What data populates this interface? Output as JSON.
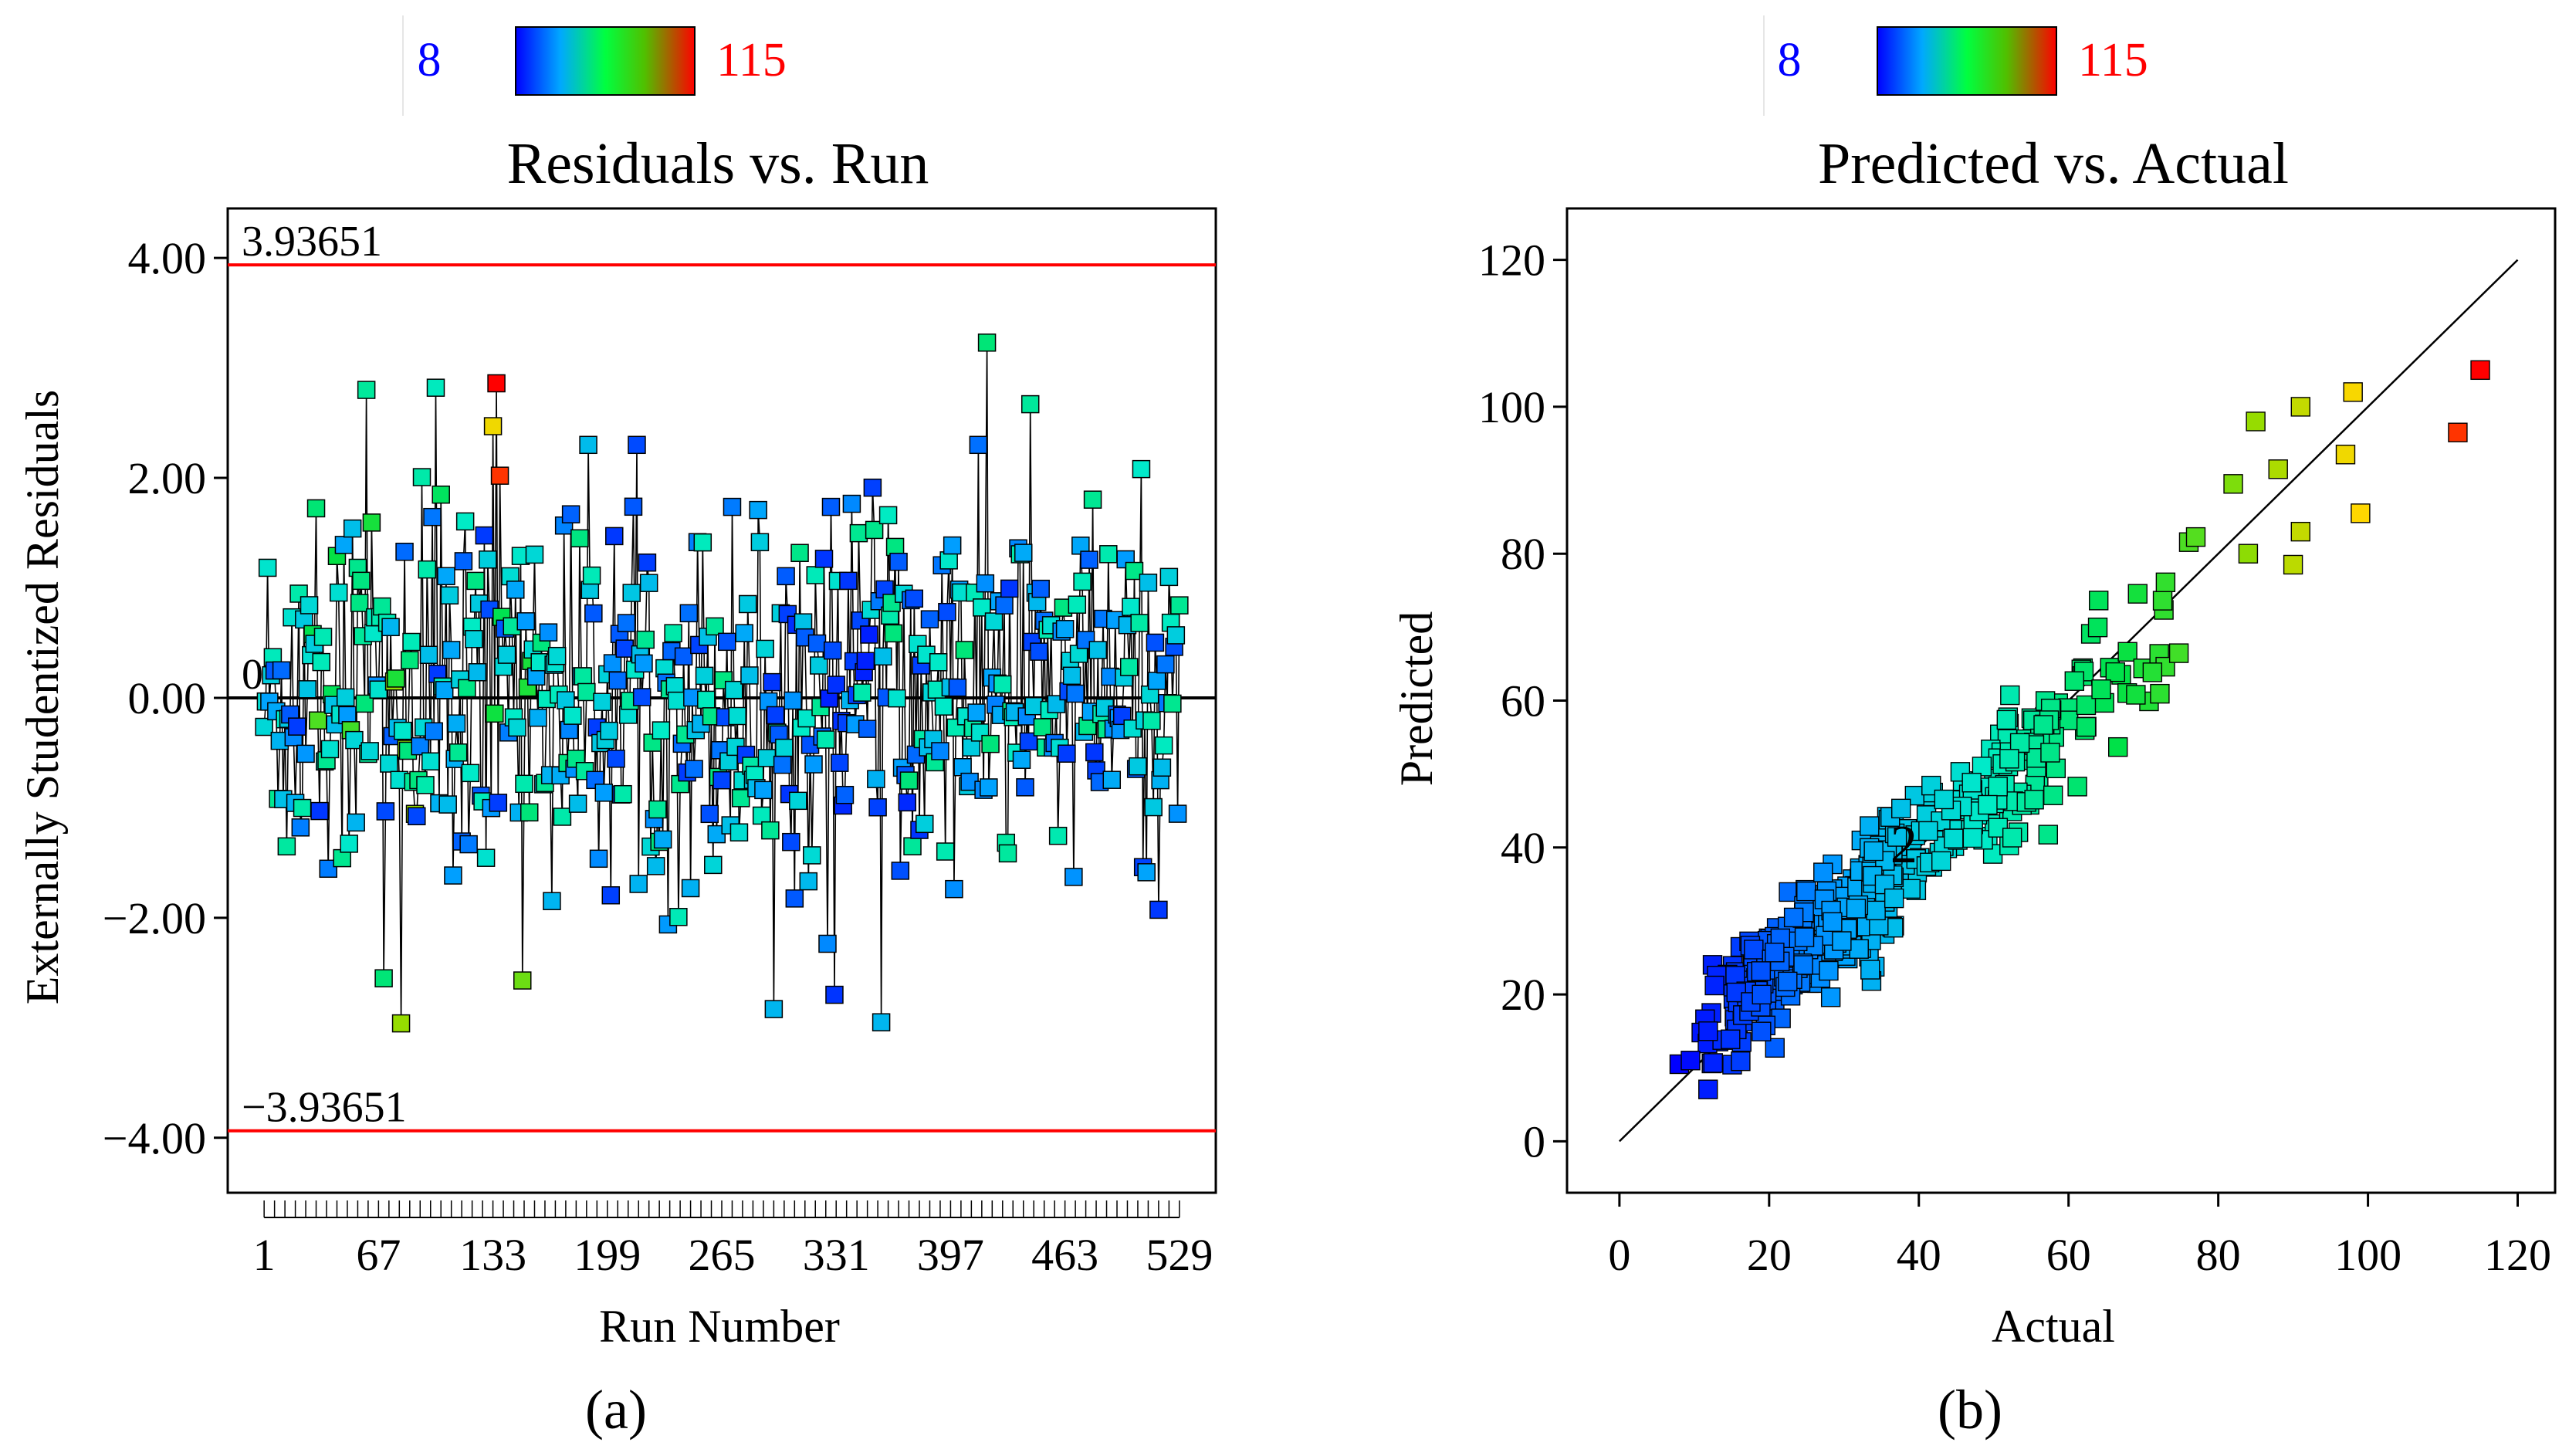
{
  "figure": {
    "panels": [
      {
        "id": "a",
        "panel_label": "(a)",
        "colorbar": {
          "min_label": "8",
          "max_label": "115",
          "min_color": "#0000ff",
          "max_color": "#ff0000"
        },
        "chart_data": {
          "type": "scatter",
          "title": "Residuals vs. Run",
          "xlabel": "Run Number",
          "ylabel": "Externally Studentized Residuals",
          "xlim": [
            -20,
            550
          ],
          "ylim": [
            -4.5,
            4.45
          ],
          "x_tick_labels": [
            "1",
            "67",
            "133",
            "199",
            "265",
            "331",
            "397",
            "463",
            "529"
          ],
          "x_ticks": [
            1,
            67,
            133,
            199,
            265,
            331,
            397,
            463,
            529
          ],
          "y_tick_labels": [
            "−4.00",
            "−2.00",
            "0.00",
            "2.00",
            "4.00"
          ],
          "y_ticks": [
            -4,
            -2,
            0,
            2,
            4
          ],
          "reference_lines": [
            {
              "value": 3.93651,
              "label": "3.93651",
              "color": "#ff0000"
            },
            {
              "value": 0,
              "label": "0",
              "color": "#000000"
            },
            {
              "value": -3.93651,
              "label": "−3.93651",
              "color": "#ff0000"
            }
          ],
          "marker": "square",
          "color_by": "Actual",
          "n_points": 529,
          "notable_points": [
            {
              "run": 60,
              "residual": 2.8,
              "actual": 55
            },
            {
              "run": 100,
              "residual": 2.82,
              "actual": 50
            },
            {
              "run": 135,
              "residual": 2.86,
              "actual": 115
            },
            {
              "run": 137,
              "residual": 2.02,
              "actual": 112
            },
            {
              "run": 133,
              "residual": 2.47,
              "actual": 97
            },
            {
              "run": 80,
              "residual": -2.96,
              "actual": 85
            },
            {
              "run": 70,
              "residual": -2.55,
              "actual": 60
            },
            {
              "run": 330,
              "residual": -2.7,
              "actual": 15
            },
            {
              "run": 357,
              "residual": -2.95,
              "actual": 35
            },
            {
              "run": 295,
              "residual": -2.83,
              "actual": 35
            },
            {
              "run": 418,
              "residual": 3.23,
              "actual": 60
            },
            {
              "run": 443,
              "residual": 2.67,
              "actual": 55
            },
            {
              "run": 150,
              "residual": -2.57,
              "actual": 80
            }
          ]
        }
      },
      {
        "id": "b",
        "panel_label": "(b)",
        "colorbar": {
          "min_label": "8",
          "max_label": "115",
          "min_color": "#0000ff",
          "max_color": "#ff0000"
        },
        "chart_data": {
          "type": "scatter",
          "title": "Predicted vs. Actual",
          "xlabel": "Actual",
          "ylabel": "Predicted",
          "xlim": [
            -7,
            125
          ],
          "ylim": [
            -7,
            127
          ],
          "x_tick_labels": [
            "0",
            "20",
            "40",
            "60",
            "80",
            "100",
            "120"
          ],
          "x_ticks": [
            0,
            20,
            40,
            60,
            80,
            100,
            120
          ],
          "y_tick_labels": [
            "0",
            "20",
            "40",
            "60",
            "80",
            "100",
            "120"
          ],
          "y_ticks": [
            0,
            20,
            40,
            60,
            80,
            100,
            120
          ],
          "reference_lines": [
            {
              "type": "identity",
              "from": 0,
              "to": 120,
              "color": "#000000"
            }
          ],
          "annotation": "2",
          "annotation_at": {
            "actual": 38,
            "predicted": 40.5
          },
          "marker": "square",
          "color_by": "Actual",
          "n_points": 529,
          "notable_points": [
            {
              "actual": 115,
              "predicted": 105
            },
            {
              "actual": 112,
              "predicted": 96.5
            },
            {
              "actual": 98,
              "predicted": 102
            },
            {
              "actual": 99,
              "predicted": 85.5
            },
            {
              "actual": 97,
              "predicted": 93.5
            },
            {
              "actual": 91,
              "predicted": 100
            },
            {
              "actual": 91,
              "predicted": 83
            },
            {
              "actual": 90,
              "predicted": 78.5
            },
            {
              "actual": 88,
              "predicted": 91.5
            },
            {
              "actual": 85,
              "predicted": 98
            },
            {
              "actual": 82,
              "predicted": 89.5
            },
            {
              "actual": 84,
              "predicted": 80
            },
            {
              "actual": 8,
              "predicted": 10.5
            },
            {
              "actual": 9.5,
              "predicted": 11
            }
          ]
        }
      }
    ]
  }
}
